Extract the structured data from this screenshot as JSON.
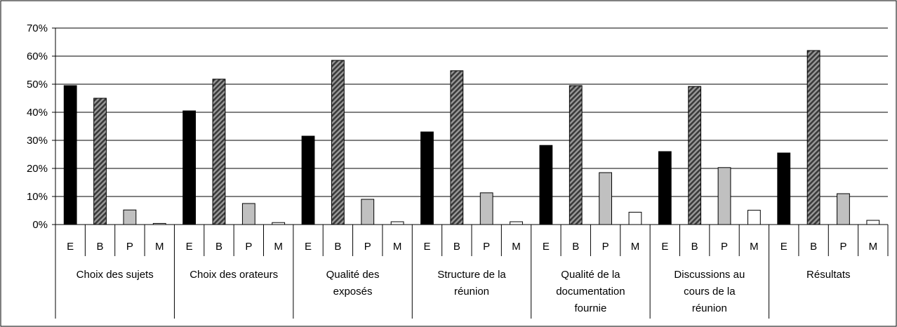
{
  "chart_data": {
    "type": "bar",
    "ylim": [
      0,
      0.7
    ],
    "y_ticks": [
      "0%",
      "10%",
      "20%",
      "30%",
      "40%",
      "50%",
      "60%",
      "70%"
    ],
    "y_tick_values": [
      0,
      0.1,
      0.2,
      0.3,
      0.4,
      0.5,
      0.6,
      0.7
    ],
    "grid": true,
    "legend": "none",
    "sub_categories": [
      "E",
      "B",
      "P",
      "M"
    ],
    "sub_colors": [
      "#000000",
      "#555555",
      "#c0c0c0",
      "#ffffff"
    ],
    "groups": [
      {
        "label_lines": [
          "Choix des sujets"
        ],
        "values": [
          0.495,
          0.45,
          0.052,
          0.004
        ]
      },
      {
        "label_lines": [
          "Choix des orateurs"
        ],
        "values": [
          0.405,
          0.518,
          0.075,
          0.007
        ]
      },
      {
        "label_lines": [
          "Qualité des",
          "exposés"
        ],
        "values": [
          0.315,
          0.585,
          0.09,
          0.01
        ]
      },
      {
        "label_lines": [
          "Structure de la",
          "réunion"
        ],
        "values": [
          0.33,
          0.548,
          0.113,
          0.01
        ]
      },
      {
        "label_lines": [
          "Qualité de la",
          "documentation",
          "fournie"
        ],
        "values": [
          0.282,
          0.495,
          0.185,
          0.044
        ]
      },
      {
        "label_lines": [
          "Discussions au",
          "cours de la",
          "réunion"
        ],
        "values": [
          0.26,
          0.492,
          0.203,
          0.051
        ]
      },
      {
        "label_lines": [
          "Résultats"
        ],
        "values": [
          0.255,
          0.62,
          0.11,
          0.015
        ]
      }
    ]
  }
}
